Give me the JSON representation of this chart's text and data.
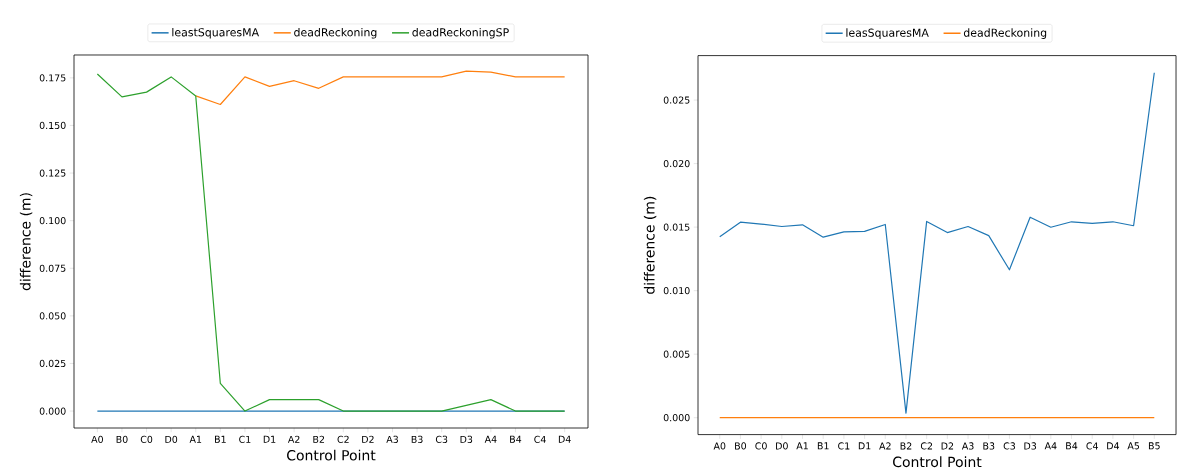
{
  "chart_data": [
    {
      "type": "line",
      "xlabel": "Control Point",
      "ylabel": "difference  (m)",
      "legend": "top",
      "grid": false,
      "categories": [
        "A0",
        "B0",
        "C0",
        "D0",
        "A1",
        "B1",
        "C1",
        "D1",
        "A2",
        "B2",
        "C2",
        "D2",
        "A3",
        "B3",
        "C3",
        "D3",
        "A4",
        "B4",
        "C4",
        "D4"
      ],
      "ylim": [
        -0.0089,
        0.187
      ],
      "yticks": [
        {
          "value": 0,
          "label": "0.000"
        },
        {
          "value": 0.025,
          "label": "0.025"
        },
        {
          "value": 0.05,
          "label": "0.050"
        },
        {
          "value": 0.075,
          "label": "0.075"
        },
        {
          "value": 0.1,
          "label": "0.100"
        },
        {
          "value": 0.125,
          "label": "0.125"
        },
        {
          "value": 0.15,
          "label": "0.150"
        },
        {
          "value": 0.175,
          "label": "0.175"
        }
      ],
      "series": [
        {
          "name": "leastSquaresMA",
          "color": "#1f77b4",
          "values": [
            0,
            0,
            0,
            0,
            0,
            0,
            0,
            0,
            0,
            0,
            0,
            0,
            0,
            0,
            0,
            0,
            0,
            0,
            0,
            0
          ]
        },
        {
          "name": "deadReckoning",
          "color": "#ff7f0e",
          "values": [
            null,
            null,
            null,
            null,
            0.1655,
            0.161,
            0.1755,
            0.1705,
            0.1735,
            0.1695,
            0.1755,
            0.1755,
            0.1755,
            0.1755,
            0.1755,
            0.1785,
            0.178,
            0.1755,
            0.1755,
            0.1755
          ]
        },
        {
          "name": "deadReckoningSP",
          "color": "#2ca02c",
          "values": [
            0.177,
            0.165,
            0.1675,
            0.1755,
            0.1655,
            0.0145,
            0,
            0.006,
            0.006,
            0.006,
            0,
            0,
            0,
            0,
            0,
            0.003,
            0.006,
            0,
            0,
            0
          ]
        }
      ]
    },
    {
      "type": "line",
      "xlabel": "Control Point",
      "ylabel": "difference  (m)",
      "legend": "top",
      "grid": false,
      "categories": [
        "A0",
        "B0",
        "C0",
        "D0",
        "A1",
        "B1",
        "C1",
        "D1",
        "A2",
        "B2",
        "C2",
        "D2",
        "A3",
        "B3",
        "C3",
        "D3",
        "A4",
        "B4",
        "C4",
        "D4",
        "A5",
        "B5"
      ],
      "ylim": [
        -0.00133,
        0.0285
      ],
      "yticks": [
        {
          "value": 0,
          "label": "0.000"
        },
        {
          "value": 0.005,
          "label": "0.005"
        },
        {
          "value": 0.01,
          "label": "0.010"
        },
        {
          "value": 0.015,
          "label": "0.015"
        },
        {
          "value": 0.02,
          "label": "0.020"
        },
        {
          "value": 0.025,
          "label": "0.025"
        }
      ],
      "series": [
        {
          "name": "leasSquaresMA",
          "color": "#1f77b4",
          "values": [
            0.01424,
            0.01539,
            0.01524,
            0.01505,
            0.01518,
            0.01421,
            0.01463,
            0.01466,
            0.01521,
            0.00036,
            0.01545,
            0.01457,
            0.01505,
            0.01433,
            0.01164,
            0.01578,
            0.01499,
            0.01542,
            0.0153,
            0.01542,
            0.01511,
            0.02715
          ]
        },
        {
          "name": "deadReckoning",
          "color": "#ff7f0e",
          "values": [
            0,
            0,
            0,
            0,
            0,
            0,
            0,
            0,
            0,
            0,
            0,
            0,
            0,
            0,
            0,
            0,
            0,
            0,
            0,
            0,
            0,
            0
          ]
        }
      ]
    }
  ]
}
